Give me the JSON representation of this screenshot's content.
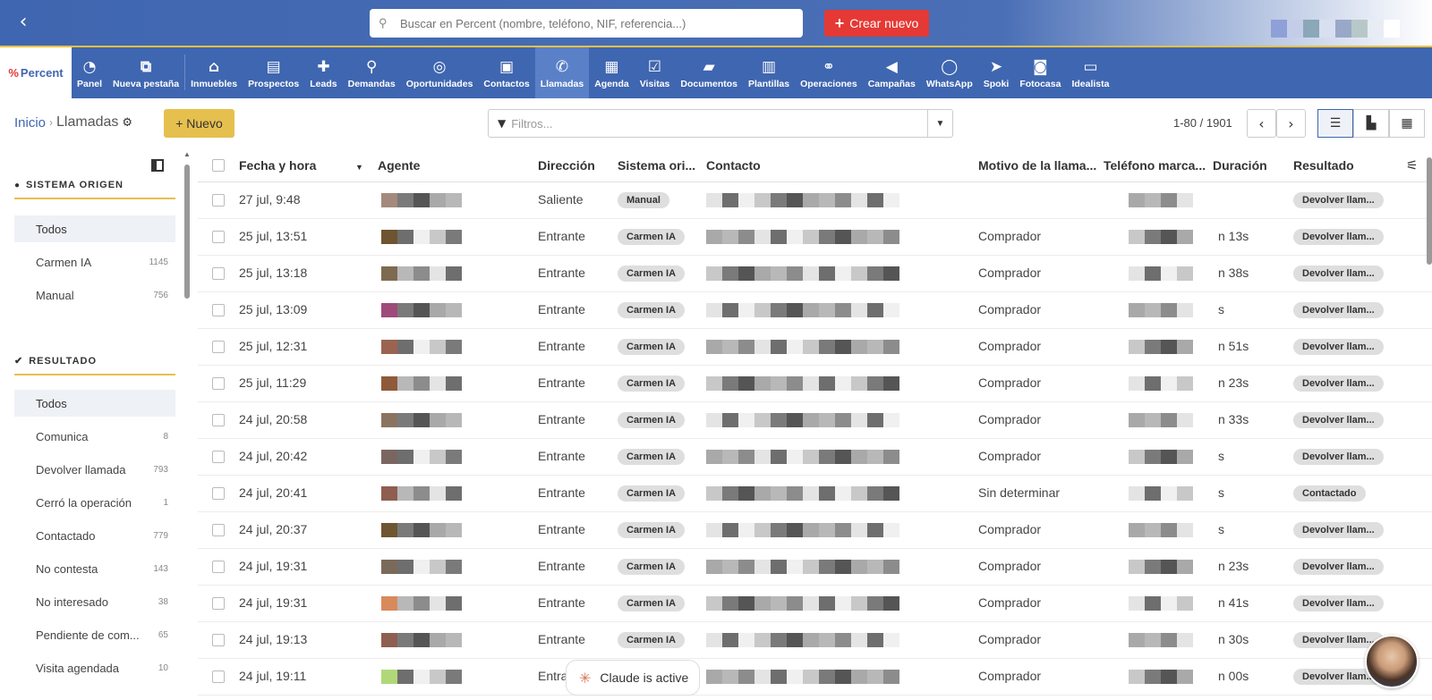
{
  "topbar": {
    "search_placeholder": "Buscar en Percent (nombre, teléfono, NIF, referencia...)",
    "create_label": "Crear nuevo"
  },
  "logo": "Percent",
  "nav": [
    {
      "label": "Panel",
      "icon": "dashboard-icon",
      "glyph": "◔"
    },
    {
      "label": "Nueva pestaña",
      "icon": "external-link-icon",
      "glyph": "⧉"
    },
    {
      "label": "Inmuebles",
      "icon": "home-icon",
      "glyph": "⌂"
    },
    {
      "label": "Prospectos",
      "icon": "documents-icon",
      "glyph": "▤"
    },
    {
      "label": "Leads",
      "icon": "user-plus-icon",
      "glyph": "✚"
    },
    {
      "label": "Demandas",
      "icon": "search-plus-icon",
      "glyph": "⚲"
    },
    {
      "label": "Oportunidades",
      "icon": "target-icon",
      "glyph": "◎"
    },
    {
      "label": "Contactos",
      "icon": "contact-card-icon",
      "glyph": "▣"
    },
    {
      "label": "Llamadas",
      "icon": "phone-icon",
      "glyph": "✆",
      "active": true
    },
    {
      "label": "Agenda",
      "icon": "calendar-icon",
      "glyph": "▦"
    },
    {
      "label": "Visitas",
      "icon": "calendar-check-icon",
      "glyph": "☑"
    },
    {
      "label": "Documentos",
      "icon": "folder-icon",
      "glyph": "▰"
    },
    {
      "label": "Plantillas",
      "icon": "template-icon",
      "glyph": "▥"
    },
    {
      "label": "Operaciones",
      "icon": "handshake-icon",
      "glyph": "⚭"
    },
    {
      "label": "Campañas",
      "icon": "megaphone-icon",
      "glyph": "◀"
    },
    {
      "label": "WhatsApp",
      "icon": "whatsapp-icon",
      "glyph": "◯"
    },
    {
      "label": "Spoki",
      "icon": "send-icon",
      "glyph": "➤"
    },
    {
      "label": "Fotocasa",
      "icon": "camera-icon",
      "glyph": "◙"
    },
    {
      "label": "Idealista",
      "icon": "id-card-icon",
      "glyph": "▭"
    }
  ],
  "toolbar": {
    "breadcrumb_home": "Inicio",
    "breadcrumb_sep": "›",
    "breadcrumb_current": "Llamadas",
    "new_label": "+ Nuevo",
    "filters_placeholder": "Filtros...",
    "pager": "1-80 / 1901"
  },
  "sidebar": {
    "origin_title": "SISTEMA ORIGEN",
    "origin_items": [
      {
        "label": "Todos",
        "count": "",
        "active": true
      },
      {
        "label": "Carmen IA",
        "count": "1145"
      },
      {
        "label": "Manual",
        "count": "756"
      }
    ],
    "result_title": "RESULTADO",
    "result_items": [
      {
        "label": "Todos",
        "count": "",
        "active": true
      },
      {
        "label": "Comunica",
        "count": "8"
      },
      {
        "label": "Devolver llamada",
        "count": "793"
      },
      {
        "label": "Cerró la operación",
        "count": "1"
      },
      {
        "label": "Contactado",
        "count": "779"
      },
      {
        "label": "No contesta",
        "count": "143"
      },
      {
        "label": "No interesado",
        "count": "38"
      },
      {
        "label": "Pendiente de com...",
        "count": "65"
      },
      {
        "label": "Visita agendada",
        "count": "10"
      }
    ]
  },
  "table": {
    "columns": {
      "date": "Fecha y hora",
      "agent": "Agente",
      "direction": "Dirección",
      "system": "Sistema ori...",
      "contact": "Contacto",
      "reason": "Motivo de la llama...",
      "phone": "Teléfono marca...",
      "duration": "Duración",
      "result": "Resultado"
    },
    "rows": [
      {
        "date": "27 jul, 9:48",
        "direction": "Saliente",
        "system": "Manual",
        "reason": "",
        "duration": "",
        "result": "Devolver llam..."
      },
      {
        "date": "25 jul, 13:51",
        "direction": "Entrante",
        "system": "Carmen IA",
        "reason": "Comprador",
        "duration": "n 13s",
        "result": "Devolver llam..."
      },
      {
        "date": "25 jul, 13:18",
        "direction": "Entrante",
        "system": "Carmen IA",
        "reason": "Comprador",
        "duration": "n 38s",
        "result": "Devolver llam..."
      },
      {
        "date": "25 jul, 13:09",
        "direction": "Entrante",
        "system": "Carmen IA",
        "reason": "Comprador",
        "duration": "s",
        "result": "Devolver llam..."
      },
      {
        "date": "25 jul, 12:31",
        "direction": "Entrante",
        "system": "Carmen IA",
        "reason": "Comprador",
        "duration": "n 51s",
        "result": "Devolver llam..."
      },
      {
        "date": "25 jul, 11:29",
        "direction": "Entrante",
        "system": "Carmen IA",
        "reason": "Comprador",
        "duration": "n 23s",
        "result": "Devolver llam..."
      },
      {
        "date": "24 jul, 20:58",
        "direction": "Entrante",
        "system": "Carmen IA",
        "reason": "Comprador",
        "duration": "n 33s",
        "result": "Devolver llam..."
      },
      {
        "date": "24 jul, 20:42",
        "direction": "Entrante",
        "system": "Carmen IA",
        "reason": "Comprador",
        "duration": "s",
        "result": "Devolver llam..."
      },
      {
        "date": "24 jul, 20:41",
        "direction": "Entrante",
        "system": "Carmen IA",
        "reason": "Sin determinar",
        "duration": "s",
        "result": "Contactado"
      },
      {
        "date": "24 jul, 20:37",
        "direction": "Entrante",
        "system": "Carmen IA",
        "reason": "Comprador",
        "duration": "s",
        "result": "Devolver llam..."
      },
      {
        "date": "24 jul, 19:31",
        "direction": "Entrante",
        "system": "Carmen IA",
        "reason": "Comprador",
        "duration": "n 23s",
        "result": "Devolver llam..."
      },
      {
        "date": "24 jul, 19:31",
        "direction": "Entrante",
        "system": "Carmen IA",
        "reason": "Comprador",
        "duration": "n 41s",
        "result": "Devolver llam..."
      },
      {
        "date": "24 jul, 19:13",
        "direction": "Entrante",
        "system": "Carmen IA",
        "reason": "Comprador",
        "duration": "n 30s",
        "result": "Devolver llam..."
      },
      {
        "date": "24 jul, 19:11",
        "direction": "Entra",
        "system": "",
        "reason": "Comprador",
        "duration": "n 00s",
        "result": "Devolver llam..."
      }
    ]
  },
  "overlay": {
    "claude_status": "Claude is active"
  },
  "colors": {
    "brand_blue": "#3f66b0",
    "accent_yellow": "#e6c04e",
    "create_red": "#e53935"
  }
}
